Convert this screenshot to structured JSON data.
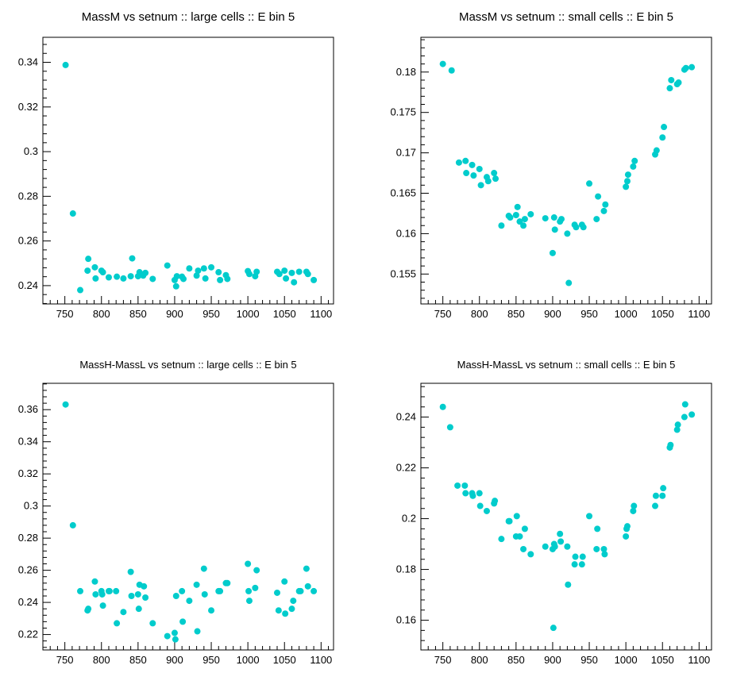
{
  "marker_color": "#00CCCC",
  "chart_data": [
    {
      "type": "scatter",
      "title": "MassM vs setnum :: large cells :: E bin 5",
      "xlabel": "",
      "ylabel": "",
      "xlim": [
        720,
        1117
      ],
      "ylim": [
        0.2318,
        0.3512
      ],
      "xticks": [
        750,
        800,
        850,
        900,
        950,
        1000,
        1050,
        1100
      ],
      "yticks": [
        0.24,
        0.26,
        0.28,
        0.3,
        0.32,
        0.34
      ],
      "ytick_labels": [
        "0.24",
        "0.26",
        "0.28",
        "0.3",
        "0.32",
        "0.34"
      ],
      "grid": false,
      "points": [
        [
          751,
          0.3388
        ],
        [
          761,
          0.2723
        ],
        [
          771,
          0.238
        ],
        [
          781,
          0.2467
        ],
        [
          782,
          0.252
        ],
        [
          791,
          0.2482
        ],
        [
          792,
          0.2432
        ],
        [
          800,
          0.2467
        ],
        [
          802,
          0.246
        ],
        [
          810,
          0.2437
        ],
        [
          821,
          0.244
        ],
        [
          830,
          0.2432
        ],
        [
          840,
          0.2442
        ],
        [
          842,
          0.2522
        ],
        [
          850,
          0.2442
        ],
        [
          852,
          0.246
        ],
        [
          857,
          0.2445
        ],
        [
          860,
          0.2457
        ],
        [
          870,
          0.243
        ],
        [
          890,
          0.249
        ],
        [
          900,
          0.2425
        ],
        [
          902,
          0.2397
        ],
        [
          903,
          0.2442
        ],
        [
          910,
          0.244
        ],
        [
          912,
          0.243
        ],
        [
          920,
          0.2477
        ],
        [
          930,
          0.2445
        ],
        [
          932,
          0.2467
        ],
        [
          940,
          0.2477
        ],
        [
          942,
          0.2432
        ],
        [
          950,
          0.2482
        ],
        [
          960,
          0.246
        ],
        [
          962,
          0.2425
        ],
        [
          970,
          0.2447
        ],
        [
          972,
          0.243
        ],
        [
          1000,
          0.2465
        ],
        [
          1002,
          0.2452
        ],
        [
          1010,
          0.2442
        ],
        [
          1012,
          0.2462
        ],
        [
          1040,
          0.2462
        ],
        [
          1043,
          0.2452
        ],
        [
          1050,
          0.2467
        ],
        [
          1052,
          0.2432
        ],
        [
          1060,
          0.2457
        ],
        [
          1063,
          0.2415
        ],
        [
          1070,
          0.2462
        ],
        [
          1080,
          0.2462
        ],
        [
          1082,
          0.2452
        ],
        [
          1090,
          0.2425
        ]
      ]
    },
    {
      "type": "scatter",
      "title": "MassM vs setnum :: small cells :: E bin 5",
      "xlabel": "",
      "ylabel": "",
      "xlim": [
        720,
        1117
      ],
      "ylim": [
        0.1513,
        0.1843
      ],
      "xticks": [
        750,
        800,
        850,
        900,
        950,
        1000,
        1050,
        1100
      ],
      "yticks": [
        0.155,
        0.16,
        0.165,
        0.17,
        0.175,
        0.18
      ],
      "ytick_labels": [
        "0.155",
        "0.16",
        "0.165",
        "0.17",
        "0.175",
        "0.18"
      ],
      "grid": false,
      "points": [
        [
          750,
          0.181
        ],
        [
          762,
          0.1802
        ],
        [
          772,
          0.1688
        ],
        [
          781,
          0.169
        ],
        [
          782,
          0.1675
        ],
        [
          790,
          0.1685
        ],
        [
          792,
          0.1672
        ],
        [
          800,
          0.168
        ],
        [
          802,
          0.166
        ],
        [
          810,
          0.167
        ],
        [
          812,
          0.1665
        ],
        [
          820,
          0.1675
        ],
        [
          822,
          0.1668
        ],
        [
          830,
          0.161
        ],
        [
          840,
          0.1622
        ],
        [
          842,
          0.162
        ],
        [
          850,
          0.1623
        ],
        [
          852,
          0.1633
        ],
        [
          855,
          0.1615
        ],
        [
          860,
          0.161
        ],
        [
          862,
          0.1618
        ],
        [
          870,
          0.1624
        ],
        [
          890,
          0.1619
        ],
        [
          900,
          0.1576
        ],
        [
          902,
          0.162
        ],
        [
          903,
          0.1605
        ],
        [
          910,
          0.1615
        ],
        [
          912,
          0.1618
        ],
        [
          920,
          0.16
        ],
        [
          922,
          0.1539
        ],
        [
          930,
          0.1611
        ],
        [
          932,
          0.1608
        ],
        [
          940,
          0.1611
        ],
        [
          942,
          0.1608
        ],
        [
          950,
          0.1662
        ],
        [
          960,
          0.1618
        ],
        [
          962,
          0.1646
        ],
        [
          970,
          0.1628
        ],
        [
          972,
          0.1636
        ],
        [
          1000,
          0.1658
        ],
        [
          1002,
          0.1665
        ],
        [
          1003,
          0.1673
        ],
        [
          1010,
          0.1683
        ],
        [
          1012,
          0.169
        ],
        [
          1040,
          0.1698
        ],
        [
          1042,
          0.1703
        ],
        [
          1050,
          0.1719
        ],
        [
          1052,
          0.1732
        ],
        [
          1060,
          0.178
        ],
        [
          1062,
          0.179
        ],
        [
          1070,
          0.1785
        ],
        [
          1072,
          0.1787
        ],
        [
          1080,
          0.1803
        ],
        [
          1082,
          0.1805
        ],
        [
          1090,
          0.1806
        ]
      ]
    },
    {
      "type": "scatter",
      "title": "MassH-MassL vs setnum :: large cells :: E bin 5",
      "xlabel": "",
      "ylabel": "",
      "xlim": [
        720,
        1117
      ],
      "ylim": [
        0.2104,
        0.3764
      ],
      "xticks": [
        750,
        800,
        850,
        900,
        950,
        1000,
        1050,
        1100
      ],
      "yticks": [
        0.22,
        0.24,
        0.26,
        0.28,
        0.3,
        0.32,
        0.34,
        0.36
      ],
      "ytick_labels": [
        "0.22",
        "0.24",
        "0.26",
        "0.28",
        "0.3",
        "0.32",
        "0.34",
        "0.36"
      ],
      "grid": false,
      "points": [
        [
          751,
          0.3632
        ],
        [
          761,
          0.288
        ],
        [
          771,
          0.247
        ],
        [
          781,
          0.235
        ],
        [
          782,
          0.236
        ],
        [
          791,
          0.253
        ],
        [
          792,
          0.245
        ],
        [
          800,
          0.247
        ],
        [
          801,
          0.245
        ],
        [
          802,
          0.238
        ],
        [
          810,
          0.247
        ],
        [
          811,
          0.247
        ],
        [
          820,
          0.247
        ],
        [
          821,
          0.227
        ],
        [
          830,
          0.234
        ],
        [
          840,
          0.259
        ],
        [
          841,
          0.244
        ],
        [
          850,
          0.245
        ],
        [
          851,
          0.236
        ],
        [
          852,
          0.251
        ],
        [
          858,
          0.25
        ],
        [
          860,
          0.243
        ],
        [
          870,
          0.227
        ],
        [
          890,
          0.219
        ],
        [
          900,
          0.221
        ],
        [
          901,
          0.217
        ],
        [
          902,
          0.244
        ],
        [
          910,
          0.247
        ],
        [
          911,
          0.228
        ],
        [
          920,
          0.241
        ],
        [
          930,
          0.251
        ],
        [
          931,
          0.222
        ],
        [
          940,
          0.261
        ],
        [
          941,
          0.245
        ],
        [
          950,
          0.235
        ],
        [
          960,
          0.247
        ],
        [
          962,
          0.247
        ],
        [
          970,
          0.252
        ],
        [
          972,
          0.252
        ],
        [
          1000,
          0.264
        ],
        [
          1001,
          0.247
        ],
        [
          1002,
          0.241
        ],
        [
          1010,
          0.249
        ],
        [
          1012,
          0.26
        ],
        [
          1040,
          0.246
        ],
        [
          1042,
          0.235
        ],
        [
          1050,
          0.253
        ],
        [
          1051,
          0.233
        ],
        [
          1060,
          0.236
        ],
        [
          1062,
          0.241
        ],
        [
          1070,
          0.247
        ],
        [
          1072,
          0.247
        ],
        [
          1080,
          0.261
        ],
        [
          1082,
          0.25
        ],
        [
          1090,
          0.247
        ]
      ]
    },
    {
      "type": "scatter",
      "title": "MassH-MassL vs setnum :: small cells :: E bin 5",
      "xlabel": "",
      "ylabel": "",
      "xlim": [
        720,
        1117
      ],
      "ylim": [
        0.1483,
        0.2533
      ],
      "xticks": [
        750,
        800,
        850,
        900,
        950,
        1000,
        1050,
        1100
      ],
      "yticks": [
        0.16,
        0.18,
        0.2,
        0.22,
        0.24
      ],
      "ytick_labels": [
        "0.16",
        "0.18",
        "0.2",
        "0.22",
        "0.24"
      ],
      "grid": false,
      "points": [
        [
          750,
          0.244
        ],
        [
          760,
          0.236
        ],
        [
          770,
          0.213
        ],
        [
          780,
          0.213
        ],
        [
          781,
          0.21
        ],
        [
          790,
          0.21
        ],
        [
          791,
          0.209
        ],
        [
          800,
          0.21
        ],
        [
          801,
          0.205
        ],
        [
          810,
          0.203
        ],
        [
          820,
          0.206
        ],
        [
          821,
          0.207
        ],
        [
          830,
          0.192
        ],
        [
          840,
          0.199
        ],
        [
          841,
          0.199
        ],
        [
          850,
          0.193
        ],
        [
          851,
          0.201
        ],
        [
          855,
          0.193
        ],
        [
          860,
          0.188
        ],
        [
          862,
          0.196
        ],
        [
          870,
          0.186
        ],
        [
          890,
          0.189
        ],
        [
          900,
          0.188
        ],
        [
          901,
          0.157
        ],
        [
          902,
          0.19
        ],
        [
          903,
          0.189
        ],
        [
          910,
          0.194
        ],
        [
          911,
          0.191
        ],
        [
          920,
          0.189
        ],
        [
          921,
          0.174
        ],
        [
          930,
          0.182
        ],
        [
          931,
          0.185
        ],
        [
          940,
          0.182
        ],
        [
          941,
          0.185
        ],
        [
          950,
          0.201
        ],
        [
          960,
          0.188
        ],
        [
          961,
          0.196
        ],
        [
          970,
          0.188
        ],
        [
          971,
          0.186
        ],
        [
          1000,
          0.193
        ],
        [
          1001,
          0.196
        ],
        [
          1002,
          0.197
        ],
        [
          1010,
          0.203
        ],
        [
          1011,
          0.205
        ],
        [
          1040,
          0.205
        ],
        [
          1041,
          0.209
        ],
        [
          1050,
          0.209
        ],
        [
          1051,
          0.212
        ],
        [
          1060,
          0.228
        ],
        [
          1061,
          0.229
        ],
        [
          1070,
          0.235
        ],
        [
          1071,
          0.237
        ],
        [
          1080,
          0.24
        ],
        [
          1081,
          0.245
        ],
        [
          1090,
          0.241
        ]
      ]
    }
  ]
}
